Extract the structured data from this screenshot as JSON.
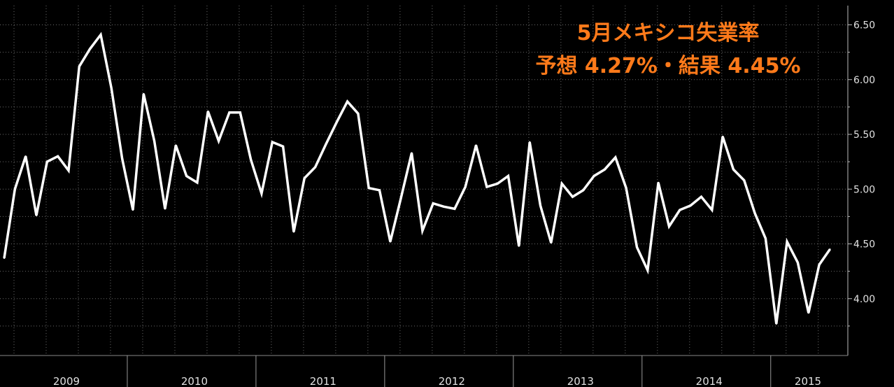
{
  "chart_data": {
    "type": "line",
    "series": [
      {
        "color": "#ffffff",
        "start_year": 2009,
        "start_month": 1,
        "values": [
          4.37,
          5.0,
          5.3,
          4.76,
          5.25,
          5.3,
          5.17,
          6.12,
          6.28,
          6.41,
          5.92,
          5.28,
          4.81,
          5.87,
          5.44,
          4.82,
          5.4,
          5.12,
          5.06,
          5.71,
          5.44,
          5.7,
          5.7,
          5.27,
          4.96,
          5.43,
          5.39,
          4.61,
          5.1,
          5.2,
          5.41,
          5.61,
          5.8,
          5.69,
          5.01,
          4.99,
          4.52,
          4.92,
          5.33,
          4.62,
          4.87,
          4.84,
          4.82,
          5.02,
          5.4,
          5.02,
          5.05,
          5.12,
          4.48,
          5.43,
          4.85,
          4.51,
          5.05,
          4.93,
          4.99,
          5.12,
          5.18,
          5.29,
          5.01,
          4.47,
          4.26,
          5.06,
          4.66,
          4.81,
          4.85,
          4.93,
          4.81,
          5.48,
          5.18,
          5.08,
          4.78,
          4.55,
          3.77,
          4.52,
          4.33,
          3.87,
          4.31,
          4.45
        ]
      }
    ],
    "y_ticks": [
      "4.00",
      "4.50",
      "5.00",
      "5.50",
      "6.00",
      "6.50"
    ],
    "ylim": [
      3.5,
      6.67
    ],
    "x_year_labels": [
      "2009",
      "2010",
      "2011",
      "2012",
      "2013",
      "2014",
      "2015"
    ],
    "annotation": {
      "line1": "5月メキシコ失業率",
      "line2": "予想 4.27%・結果 4.45%"
    },
    "grid": true,
    "y_axis_side": "right"
  }
}
